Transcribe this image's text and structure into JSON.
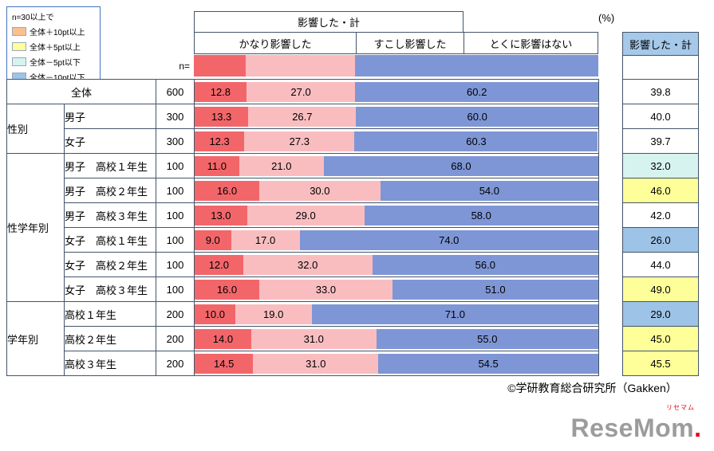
{
  "legend": {
    "title": "n=30以上で",
    "items": [
      {
        "label": "全体＋10pt以上",
        "color": "#FAC090"
      },
      {
        "label": "全体＋5pt以上",
        "color": "#FFFF99"
      },
      {
        "label": "全体－5pt以下",
        "color": "#D6F3EF"
      },
      {
        "label": "全体－10pt以下",
        "color": "#9DC3E6"
      }
    ]
  },
  "header": {
    "affected_total_label": "影響した・計",
    "percent_label": "(%)",
    "n_label": "n=",
    "right_column_label": "影響した・計"
  },
  "chart_data": {
    "type": "bar",
    "stacked": true,
    "orientation": "horizontal",
    "unit": "%",
    "xlim": [
      0,
      100
    ],
    "series_labels": [
      "かなり影響した",
      "すこし影響した",
      "とくに影響はない"
    ],
    "series_colors": [
      "#F2666A",
      "#F9BDC0",
      "#7E96D6"
    ],
    "header_strip_values": [
      12.8,
      27.0,
      60.2
    ],
    "highlight_colors": {
      "plus10": "#FAC090",
      "plus5": "#FFFF99",
      "minus5": "#D6F3EF",
      "minus10": "#9DC3E6",
      "none": "#FFFFFF"
    },
    "rows": [
      {
        "merge_label": true,
        "label": "全体",
        "n": "600",
        "values": [
          "12.8",
          "27.0",
          "60.2"
        ],
        "total": "39.8",
        "highlight": "none"
      },
      {
        "group": "性別",
        "group_span": 2,
        "label": "男子",
        "n": "300",
        "values": [
          "13.3",
          "26.7",
          "60.0"
        ],
        "total": "40.0",
        "highlight": "none"
      },
      {
        "label": "女子",
        "n": "300",
        "values": [
          "12.3",
          "27.3",
          "60.3"
        ],
        "total": "39.7",
        "highlight": "none"
      },
      {
        "group": "性学年別",
        "group_span": 6,
        "label": "男子　高校１年生",
        "n": "100",
        "values": [
          "11.0",
          "21.0",
          "68.0"
        ],
        "total": "32.0",
        "highlight": "minus5"
      },
      {
        "label": "男子　高校２年生",
        "n": "100",
        "values": [
          "16.0",
          "30.0",
          "54.0"
        ],
        "total": "46.0",
        "highlight": "plus5"
      },
      {
        "label": "男子　高校３年生",
        "n": "100",
        "values": [
          "13.0",
          "29.0",
          "58.0"
        ],
        "total": "42.0",
        "highlight": "none"
      },
      {
        "label": "女子　高校１年生",
        "n": "100",
        "values": [
          "9.0",
          "17.0",
          "74.0"
        ],
        "total": "26.0",
        "highlight": "minus10"
      },
      {
        "label": "女子　高校２年生",
        "n": "100",
        "values": [
          "12.0",
          "32.0",
          "56.0"
        ],
        "total": "44.0",
        "highlight": "none"
      },
      {
        "label": "女子　高校３年生",
        "n": "100",
        "values": [
          "16.0",
          "33.0",
          "51.0"
        ],
        "total": "49.0",
        "highlight": "plus5"
      },
      {
        "group": "学年別",
        "group_span": 3,
        "label": "高校１年生",
        "n": "200",
        "values": [
          "10.0",
          "19.0",
          "71.0"
        ],
        "total": "29.0",
        "highlight": "minus10"
      },
      {
        "label": "高校２年生",
        "n": "200",
        "values": [
          "14.0",
          "31.0",
          "55.0"
        ],
        "total": "45.0",
        "highlight": "plus5"
      },
      {
        "label": "高校３年生",
        "n": "200",
        "values": [
          "14.5",
          "31.0",
          "54.5"
        ],
        "total": "45.5",
        "highlight": "plus5"
      }
    ]
  },
  "footer": {
    "copyright": "©学研教育総合研究所（Gakken）",
    "logo_text": "ReseMom",
    "logo_dot": ".",
    "logo_sub": "リセマム"
  }
}
